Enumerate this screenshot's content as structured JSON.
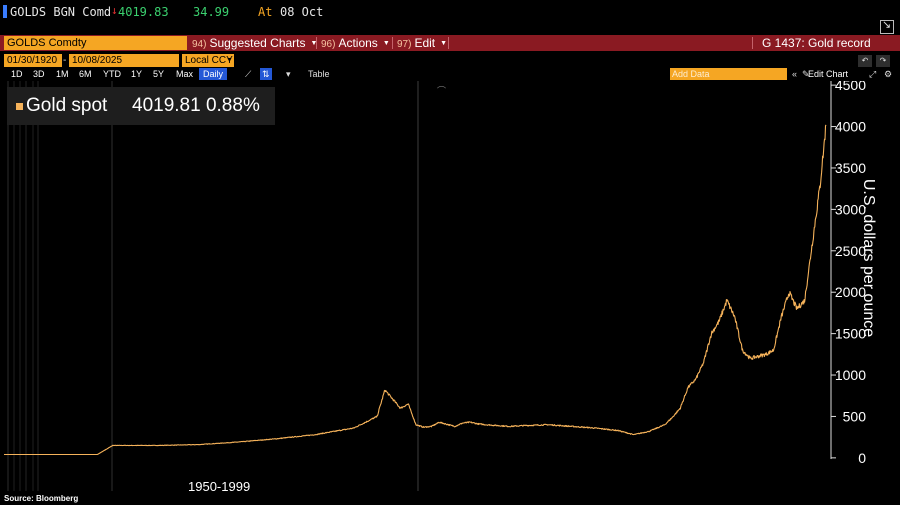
{
  "ticker": {
    "security": "GOLDS BGN Comd",
    "change_arrow": "↓",
    "price": "4019.83",
    "change": "34.99",
    "at_label": "At",
    "date": "08 Oct"
  },
  "command_bar": {
    "security_field": "GOLDS Comdty",
    "menus": [
      {
        "num": "94)",
        "label": "Suggested Charts"
      },
      {
        "num": "96)",
        "label": "Actions"
      },
      {
        "num": "97)",
        "label": "Edit"
      }
    ],
    "right_title": "G 1437: Gold record"
  },
  "date_range": {
    "start": "01/30/1920",
    "separator": "-",
    "end": "10/08/2025",
    "currency": "Local CCY"
  },
  "periods": [
    "1D",
    "3D",
    "1M",
    "6M",
    "YTD",
    "1Y",
    "5Y",
    "Max"
  ],
  "frequency": "Daily",
  "table_label": "Table",
  "add_data_placeholder": "Add Data",
  "edit_chart_label": "Edit Chart",
  "icons": {
    "undo": "↶",
    "redo": "↷",
    "line_tool": "⟋",
    "compare_tool": "⇅",
    "collapse": "«",
    "pencil": "✎",
    "zoom": "⤢",
    "gear": "⚙",
    "chart_type": "⌒"
  },
  "legend": {
    "name": "Gold spot",
    "value": "4019.81 0.88%",
    "color": "#f5b25a"
  },
  "era_label": "1950-1999",
  "source": "Source: Bloomberg",
  "chart_data": {
    "type": "line",
    "title": "",
    "xlabel": "",
    "ylabel": "U.S. dollars per ounce",
    "ylim": [
      -50,
      4550
    ],
    "yticks": [
      0,
      500,
      1000,
      1500,
      2000,
      2500,
      3000,
      3500,
      4000,
      4500
    ],
    "grid": false,
    "legend_position": "top-left",
    "series": [
      {
        "name": "Gold spot",
        "color": "#f5b25a",
        "x": [
          1920,
          1924,
          1928,
          1932,
          1934,
          1935,
          1940,
          1945,
          1950,
          1955,
          1960,
          1965,
          1968,
          1969,
          1971,
          1972,
          1973,
          1974,
          1975,
          1976,
          1978,
          1979,
          1980,
          1981,
          1982,
          1985,
          1987,
          1990,
          1993,
          1996,
          1999,
          2001,
          2003,
          2005,
          2006,
          2007,
          2008,
          2009,
          2010,
          2011,
          2012,
          2013,
          2014,
          2015,
          2016,
          2018,
          2019,
          2020,
          2021,
          2022,
          2023,
          2024,
          2025,
          2025.75
        ],
        "y": [
          40,
          40,
          40,
          40,
          150,
          150,
          150,
          160,
          190,
          230,
          280,
          360,
          500,
          820,
          600,
          650,
          400,
          370,
          380,
          430,
          380,
          420,
          430,
          410,
          400,
          380,
          390,
          400,
          380,
          360,
          330,
          280,
          320,
          400,
          490,
          600,
          850,
          950,
          1150,
          1500,
          1650,
          1900,
          1700,
          1300,
          1200,
          1250,
          1300,
          1700,
          2000,
          1800,
          1900,
          2600,
          3300,
          4020
        ]
      }
    ]
  }
}
